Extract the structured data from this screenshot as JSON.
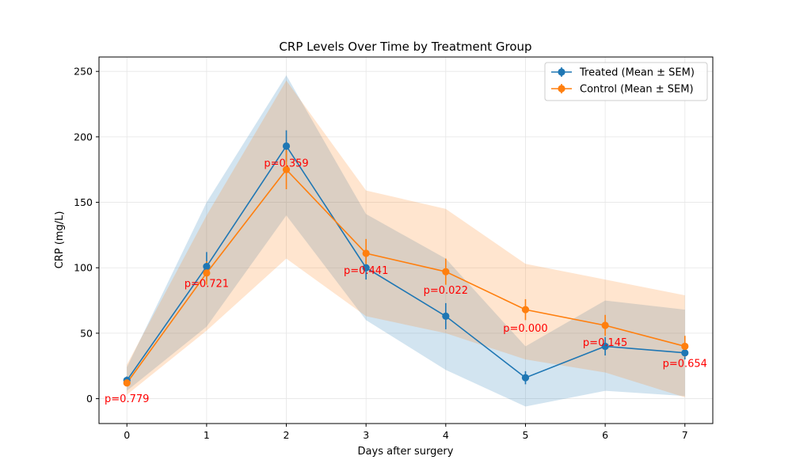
{
  "chart_data": {
    "type": "line",
    "title": "CRP Levels Over Time by Treatment Group",
    "xlabel": "Days after surgery",
    "ylabel": "CRP (mg/L)",
    "x": [
      0,
      1,
      2,
      3,
      4,
      5,
      6,
      7
    ],
    "xlim": [
      -0.35,
      7.35
    ],
    "ylim": [
      -19,
      261
    ],
    "xticks": [
      "0",
      "1",
      "2",
      "3",
      "4",
      "5",
      "6",
      "7"
    ],
    "yticks": [
      "0",
      "50",
      "100",
      "150",
      "200",
      "250"
    ],
    "grid": true,
    "legend_position": "top-right",
    "series": [
      {
        "name": "Treated (Mean ± SEM)",
        "color": "#1f77b4",
        "values": [
          14,
          101,
          193,
          100,
          63,
          16,
          40,
          35
        ],
        "sem": [
          3,
          11,
          12,
          9,
          10,
          5,
          7,
          5
        ],
        "band_lower": [
          6,
          55,
          140,
          60,
          22,
          -6,
          6,
          2
        ],
        "band_upper": [
          24,
          150,
          247,
          141,
          107,
          40,
          75,
          68
        ]
      },
      {
        "name": "Control (Mean ± SEM)",
        "color": "#ff7f0e",
        "values": [
          12,
          96,
          175,
          111,
          97,
          68,
          56,
          40
        ],
        "sem": [
          2,
          9,
          15,
          11,
          10,
          8,
          8,
          8
        ],
        "band_lower": [
          3,
          52,
          107,
          63,
          50,
          30,
          20,
          1
        ],
        "band_upper": [
          26,
          140,
          243,
          159,
          145,
          103,
          91,
          79
        ]
      }
    ],
    "annotations": [
      {
        "text": "p=0.779",
        "x": 0,
        "y": 0
      },
      {
        "text": "p=0.721",
        "x": 1,
        "y": 88
      },
      {
        "text": "p=0.359",
        "x": 2,
        "y": 180
      },
      {
        "text": "p=0.441",
        "x": 3,
        "y": 98
      },
      {
        "text": "p=0.022",
        "x": 4,
        "y": 83
      },
      {
        "text": "p=0.000",
        "x": 5,
        "y": 54
      },
      {
        "text": "p=0.145",
        "x": 6,
        "y": 43
      },
      {
        "text": "p=0.654",
        "x": 7,
        "y": 27
      }
    ]
  }
}
